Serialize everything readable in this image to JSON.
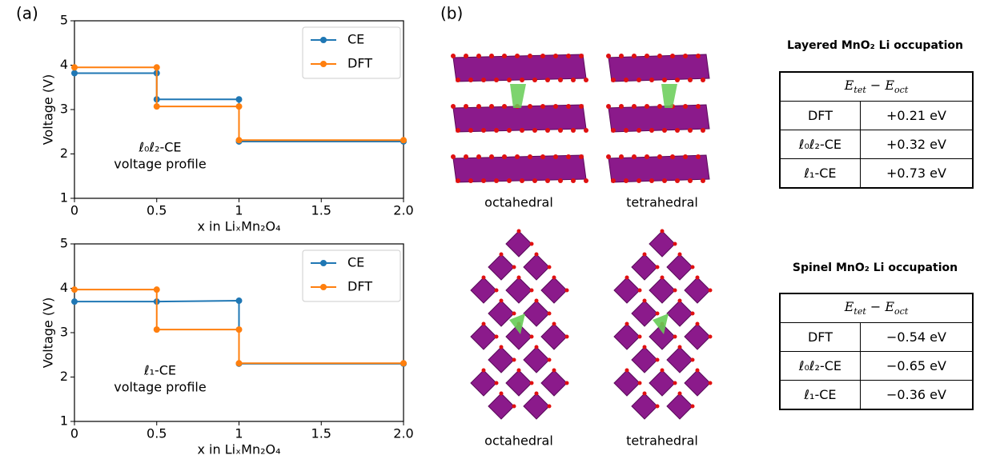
{
  "chart_data": [
    {
      "type": "line",
      "ylabel": "Voltage (V)",
      "xlabel": "x in LiₓMn₂O₄",
      "xlim": [
        0,
        2
      ],
      "ylim": [
        1,
        5
      ],
      "xticks": [
        0,
        0.5,
        1,
        1.5,
        {
          "value": 2,
          "label": "2.0"
        }
      ],
      "yticks": [
        1,
        2,
        3,
        4,
        5
      ],
      "legend": "upper right",
      "annotation": [
        "ℓ₀ℓ₂-CE",
        "voltage profile"
      ],
      "series": [
        {
          "name": "CE",
          "color": "#1f77b4",
          "x": [
            0,
            0.5,
            0.5,
            1,
            1,
            2
          ],
          "values": [
            3.82,
            3.82,
            3.23,
            3.23,
            2.28,
            2.28
          ]
        },
        {
          "name": "DFT",
          "color": "#ff7f0e",
          "x": [
            0,
            0.5,
            0.5,
            1,
            1,
            2
          ],
          "values": [
            3.95,
            3.95,
            3.07,
            3.07,
            2.31,
            2.31
          ]
        }
      ]
    },
    {
      "type": "line",
      "ylabel": "Voltage (V)",
      "xlabel": "x in LiₓMn₂O₄",
      "xlim": [
        0,
        2
      ],
      "ylim": [
        1,
        5
      ],
      "xticks": [
        0,
        0.5,
        1,
        1.5,
        {
          "value": 2,
          "label": "2.0"
        }
      ],
      "yticks": [
        1,
        2,
        3,
        4,
        5
      ],
      "legend": "upper right",
      "annotation": [
        "ℓ₁-CE",
        "voltage profile"
      ],
      "series": [
        {
          "name": "CE",
          "color": "#1f77b4",
          "x": [
            0,
            0.5,
            1,
            1,
            2
          ],
          "values": [
            3.7,
            3.7,
            3.72,
            2.3,
            2.3
          ]
        },
        {
          "name": "DFT",
          "color": "#ff7f0e",
          "x": [
            0,
            0.5,
            0.5,
            1,
            1,
            2
          ],
          "values": [
            3.97,
            3.97,
            3.07,
            3.07,
            2.31,
            2.31
          ]
        }
      ]
    }
  ],
  "panels": [
    "(a)",
    "(b)"
  ],
  "structures": [
    "octahedral",
    "tetrahedral",
    "octahedral",
    "tetrahedral"
  ],
  "tables": [
    {
      "title": "Layered MnO₂ Li occupation",
      "header": {
        "e1": "E",
        "s1": "tet",
        "op": " − ",
        "e2": "E",
        "s2": "oct"
      },
      "rows": [
        [
          "DFT",
          "+0.21 eV"
        ],
        [
          "ℓ₀ℓ₂-CE",
          "+0.32 eV"
        ],
        [
          "ℓ₁-CE",
          "+0.73 eV"
        ]
      ]
    },
    {
      "title": "Spinel MnO₂ Li occupation",
      "header": {
        "e1": "E",
        "s1": "tet",
        "op": " − ",
        "e2": "E",
        "s2": "oct"
      },
      "rows": [
        [
          "DFT",
          "−0.54 eV"
        ],
        [
          "ℓ₀ℓ₂-CE",
          "−0.65 eV"
        ],
        [
          "ℓ₁-CE",
          "−0.36 eV"
        ]
      ]
    }
  ]
}
